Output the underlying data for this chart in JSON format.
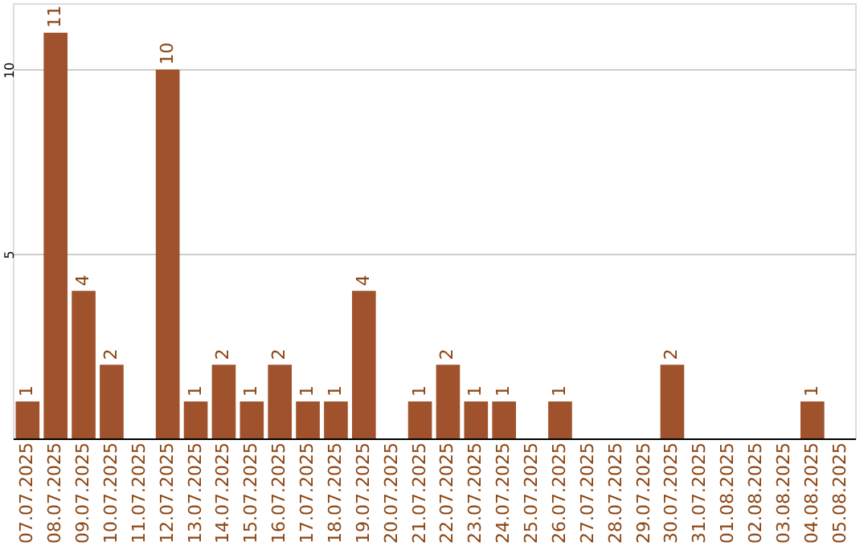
{
  "chart_data": {
    "type": "bar",
    "categories": [
      "07.07.2025",
      "08.07.2025",
      "09.07.2025",
      "10.07.2025",
      "11.07.2025",
      "12.07.2025",
      "13.07.2025",
      "14.07.2025",
      "15.07.2025",
      "16.07.2025",
      "17.07.2025",
      "18.07.2025",
      "19.07.2025",
      "20.07.2025",
      "21.07.2025",
      "22.07.2025",
      "23.07.2025",
      "24.07.2025",
      "25.07.2025",
      "26.07.2025",
      "27.07.2025",
      "28.07.2025",
      "29.07.2025",
      "30.07.2025",
      "31.07.2025",
      "01.08.2025",
      "02.08.2025",
      "03.08.2025",
      "04.08.2025",
      "05.08.2025"
    ],
    "values": [
      1,
      11,
      4,
      2,
      0,
      10,
      1,
      2,
      1,
      2,
      1,
      1,
      4,
      0,
      1,
      2,
      1,
      1,
      0,
      1,
      0,
      0,
      0,
      2,
      0,
      0,
      0,
      0,
      1,
      0
    ],
    "value_labels": [
      "1",
      "11",
      "4",
      "2",
      null,
      "10",
      "1",
      "2",
      "1",
      "2",
      "1",
      "1",
      "4",
      null,
      "1",
      "2",
      "1",
      "1",
      null,
      "1",
      null,
      null,
      null,
      "2",
      null,
      null,
      null,
      null,
      "1",
      null
    ],
    "color": "#a0522d",
    "ylim": [
      0,
      11.8
    ],
    "yticks": [
      5,
      10
    ],
    "grid": "y"
  }
}
